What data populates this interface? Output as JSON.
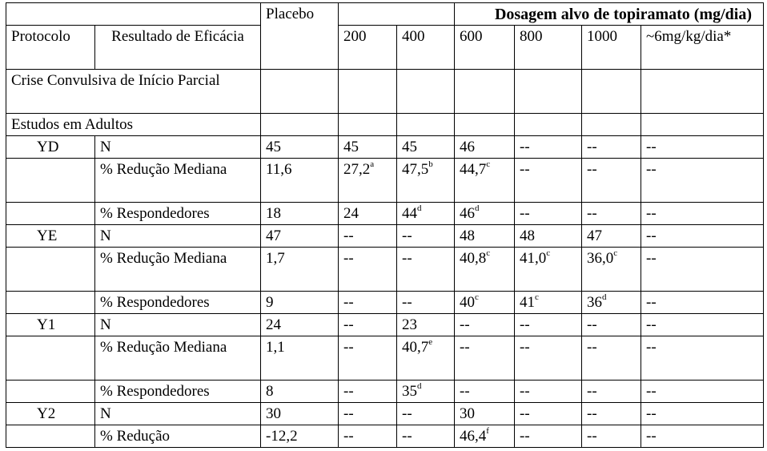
{
  "header": {
    "dosage_title": "Dosagem alvo de topiramato (mg/dia)",
    "protocol": "Protocolo",
    "result": "Resultado de Eficácia",
    "placebo": "Placebo",
    "doses": [
      "200",
      "400",
      "600",
      "800",
      "1000",
      "~6mg/kg/dia*"
    ]
  },
  "section": "Crise Convulsiva de Início Parcial",
  "subsection": "Estudos em Adultos",
  "rows": [
    {
      "protocol": "YD",
      "result": "N",
      "placebo": "45",
      "values": [
        {
          "v": "45"
        },
        {
          "v": "45"
        },
        {
          "v": "46"
        },
        {
          "v": "--"
        },
        {
          "v": "--"
        },
        {
          "v": "--"
        }
      ]
    },
    {
      "protocol": "",
      "result": "% Redução Mediana",
      "placebo": "11,6",
      "values": [
        {
          "v": "27,2",
          "s": "a"
        },
        {
          "v": "47,5",
          "s": "b"
        },
        {
          "v": "44,7",
          "s": "c"
        },
        {
          "v": "--"
        },
        {
          "v": "--"
        },
        {
          "v": "--"
        }
      ]
    },
    {
      "protocol": "",
      "result": "% Respondedores",
      "placebo": "18",
      "values": [
        {
          "v": "24"
        },
        {
          "v": "44",
          "s": "d"
        },
        {
          "v": "46",
          "s": "d"
        },
        {
          "v": "--"
        },
        {
          "v": "--"
        },
        {
          "v": "--"
        }
      ]
    },
    {
      "protocol": "YE",
      "result": "N",
      "placebo": "47",
      "values": [
        {
          "v": "--"
        },
        {
          "v": "--"
        },
        {
          "v": "48"
        },
        {
          "v": "48"
        },
        {
          "v": "47"
        },
        {
          "v": "--"
        }
      ]
    },
    {
      "protocol": "",
      "result": "% Redução Mediana",
      "placebo": "1,7",
      "values": [
        {
          "v": "--"
        },
        {
          "v": "--"
        },
        {
          "v": "40,8",
          "s": "c"
        },
        {
          "v": "41,0",
          "s": "c"
        },
        {
          "v": "36,0",
          "s": "c"
        },
        {
          "v": "--"
        }
      ]
    },
    {
      "protocol": "",
      "result": "% Respondedores",
      "placebo": "9",
      "values": [
        {
          "v": "--"
        },
        {
          "v": "--"
        },
        {
          "v": "40",
          "s": "c"
        },
        {
          "v": "41",
          "s": "c"
        },
        {
          "v": "36",
          "s": "d"
        },
        {
          "v": "--"
        }
      ]
    },
    {
      "protocol": "Y1",
      "result": "N",
      "placebo": "24",
      "values": [
        {
          "v": "--"
        },
        {
          "v": "23"
        },
        {
          "v": "--"
        },
        {
          "v": "--"
        },
        {
          "v": "--"
        },
        {
          "v": "--"
        }
      ]
    },
    {
      "protocol": "",
      "result": "% Redução Mediana",
      "placebo": "1,1",
      "values": [
        {
          "v": "--"
        },
        {
          "v": "40,7",
          "s": "e"
        },
        {
          "v": "--"
        },
        {
          "v": "--"
        },
        {
          "v": "--"
        },
        {
          "v": "--"
        }
      ]
    },
    {
      "protocol": "",
      "result": "% Respondedores",
      "placebo": "8",
      "values": [
        {
          "v": "--"
        },
        {
          "v": "35",
          "s": "d"
        },
        {
          "v": "--"
        },
        {
          "v": "--"
        },
        {
          "v": "--"
        },
        {
          "v": "--"
        }
      ]
    },
    {
      "protocol": "Y2",
      "result": "N",
      "placebo": "30",
      "values": [
        {
          "v": "--"
        },
        {
          "v": "--"
        },
        {
          "v": "30"
        },
        {
          "v": "--"
        },
        {
          "v": "--"
        },
        {
          "v": "--"
        }
      ]
    },
    {
      "protocol": "",
      "result": "% Redução",
      "placebo": "-12,2",
      "values": [
        {
          "v": "--"
        },
        {
          "v": "--"
        },
        {
          "v": "46,4",
          "s": "f"
        },
        {
          "v": "--"
        },
        {
          "v": "--"
        },
        {
          "v": "--"
        }
      ]
    }
  ]
}
